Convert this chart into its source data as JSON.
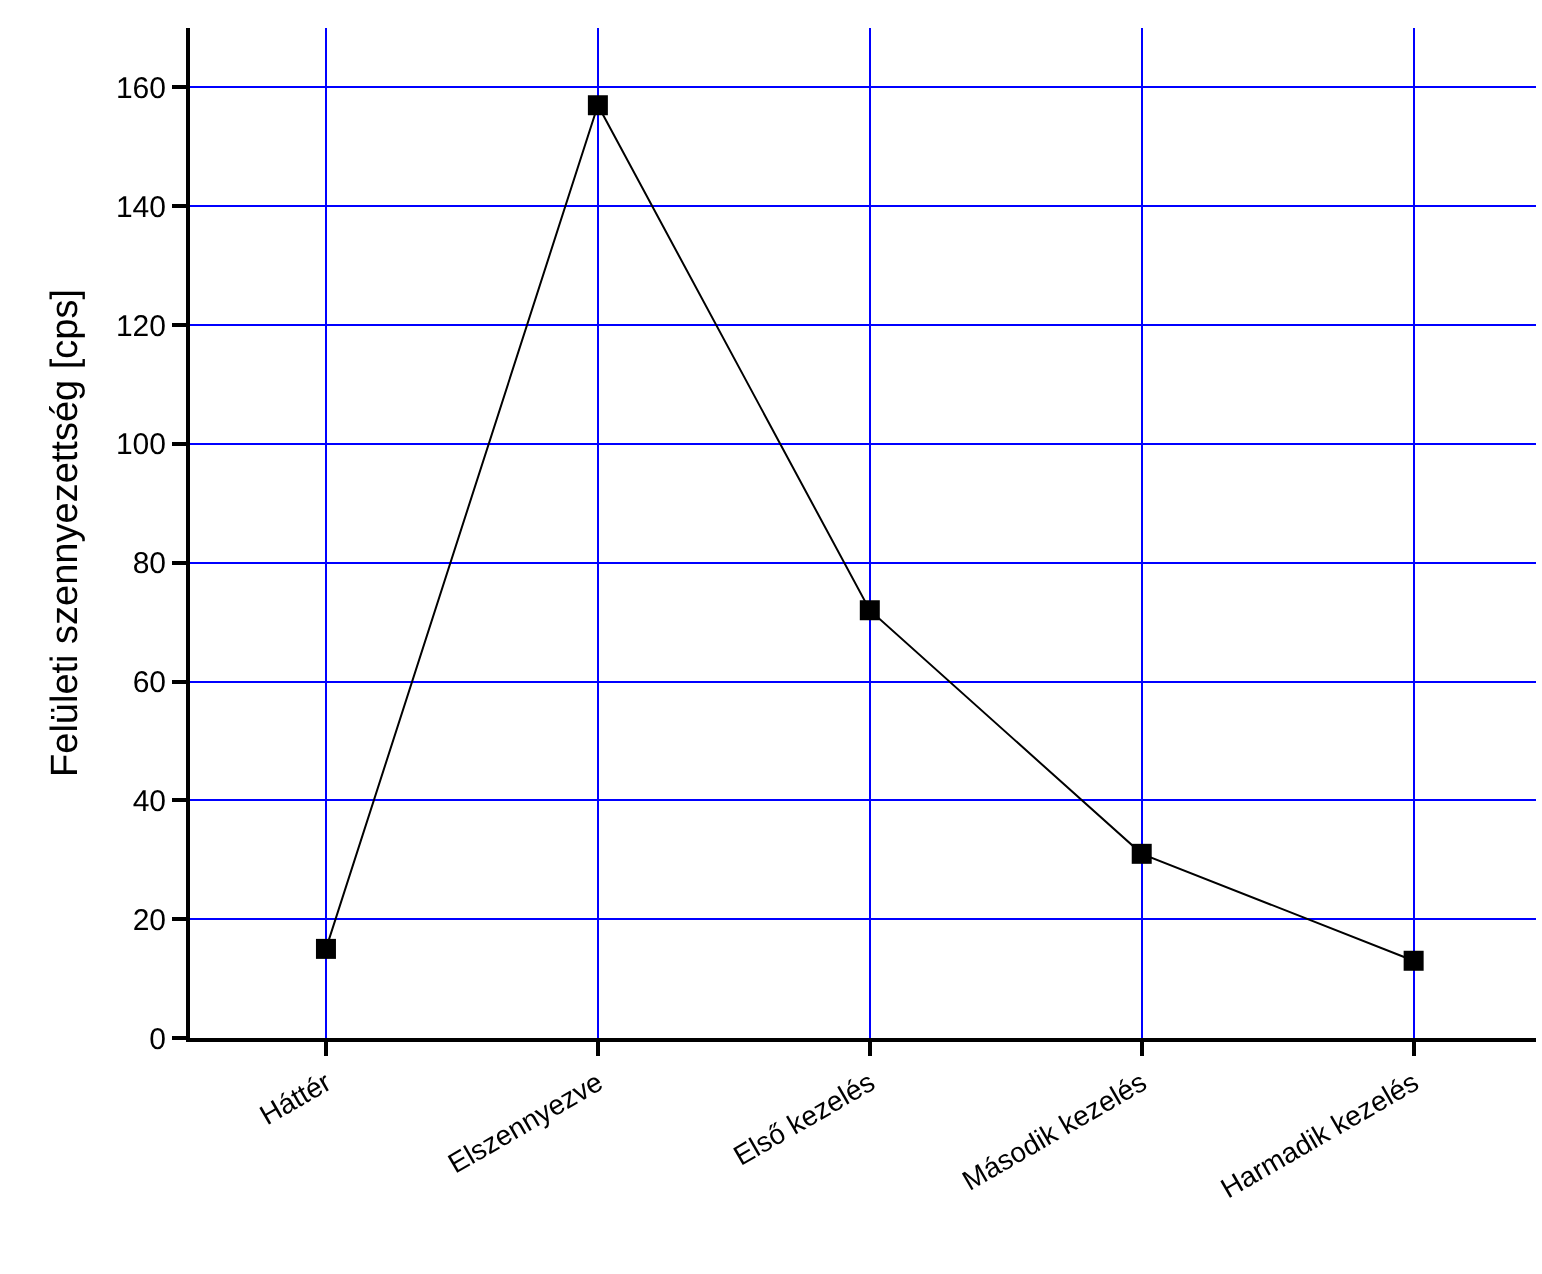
{
  "chart_data": {
    "type": "line",
    "ylabel": "Felületi szennyezettség [cps]",
    "categories": [
      "Háttér",
      "Elszennyezve",
      "Első kezelés",
      "Második kezelés",
      "Harmadik kezelés"
    ],
    "series": [
      {
        "color": "#000000",
        "values": [
          15,
          157,
          72,
          31,
          13
        ]
      }
    ],
    "ylim": [
      0,
      170
    ],
    "yticks": [
      0,
      20,
      40,
      60,
      80,
      100,
      120,
      140,
      160
    ],
    "grid": true,
    "marker": "square",
    "line_style": "solid"
  }
}
